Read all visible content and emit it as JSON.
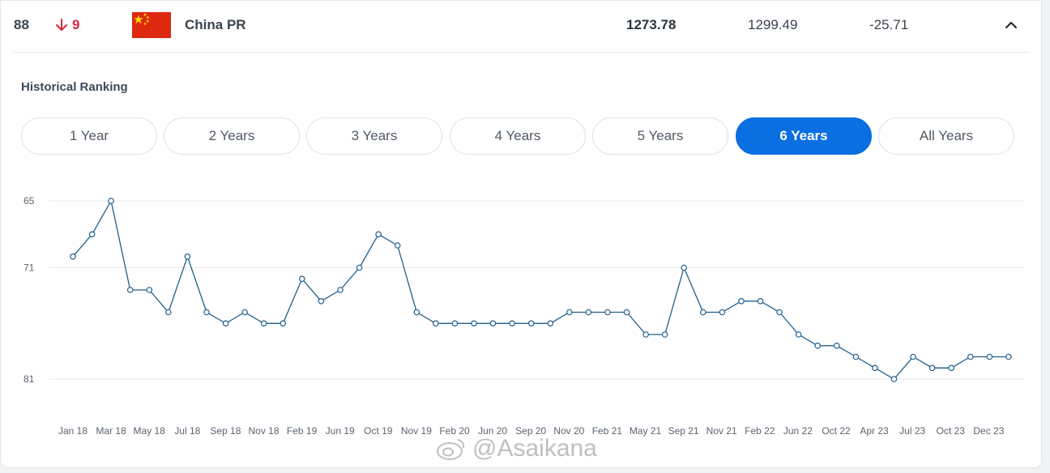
{
  "row": {
    "rank": "88",
    "change": "9",
    "country": "China PR",
    "current_points": "1273.78",
    "previous_points": "1299.49",
    "points_change": "-25.71",
    "change_color": "#d7263d"
  },
  "section_title": "Historical Ranking",
  "tabs": [
    {
      "label": "1 Year",
      "active": false
    },
    {
      "label": "2 Years",
      "active": false
    },
    {
      "label": "3 Years",
      "active": false
    },
    {
      "label": "4 Years",
      "active": false
    },
    {
      "label": "5 Years",
      "active": false
    },
    {
      "label": "6 Years",
      "active": true
    },
    {
      "label": "All Years",
      "active": false
    }
  ],
  "chart_data": {
    "type": "line",
    "y_inverted": true,
    "ylim": [
      65,
      81
    ],
    "yticks": [
      "65",
      "71",
      "81"
    ],
    "xtick_labels": [
      "Jan 18",
      "Mar 18",
      "May 18",
      "Jul 18",
      "Sep 18",
      "Nov 18",
      "Feb 19",
      "Jun 19",
      "Oct 19",
      "Nov 19",
      "Feb 20",
      "Jun 20",
      "Sep 20",
      "Nov 20",
      "Feb 21",
      "May 21",
      "Sep 21",
      "Nov 21",
      "Feb 22",
      "Jun 22",
      "Oct 22",
      "Apr 23",
      "Jul 23",
      "Oct 23",
      "Dec 23"
    ],
    "series": [
      {
        "values": [
          70,
          68,
          65,
          73,
          73,
          75,
          70,
          75,
          76,
          75,
          76,
          76,
          72,
          74,
          73,
          71,
          68,
          69,
          75,
          76,
          76,
          76,
          76,
          76,
          76,
          76,
          75,
          75,
          75,
          75,
          77,
          77,
          71,
          75,
          75,
          74,
          74,
          75,
          77,
          78,
          78,
          79,
          80,
          81,
          79,
          80,
          80,
          79,
          79,
          79
        ],
        "color": "#1f5f8b"
      }
    ]
  },
  "watermark": "@Asaikana"
}
